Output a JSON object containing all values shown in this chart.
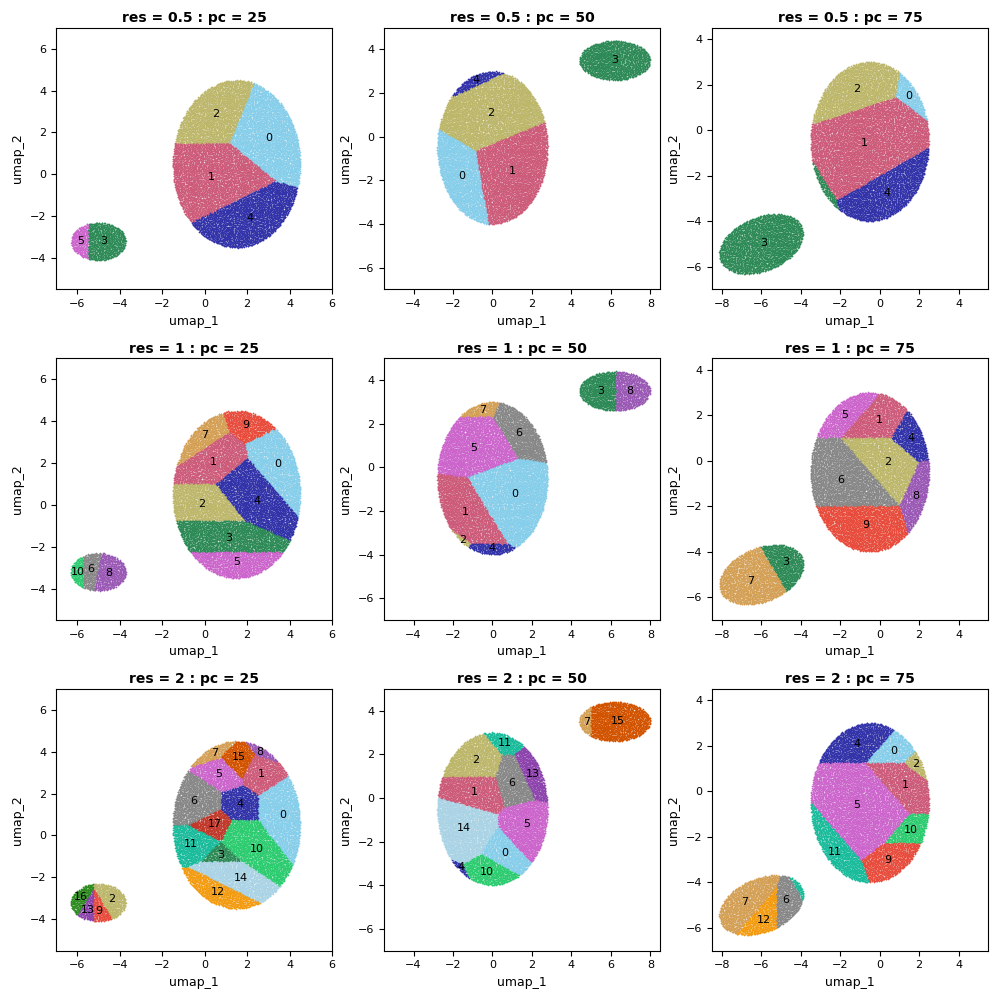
{
  "subplot_titles": [
    [
      "res = 0.5 : pc = 25",
      "res = 0.5 : pc = 50",
      "res = 0.5 : pc = 75"
    ],
    [
      "res = 1 : pc = 25",
      "res = 1 : pc = 50",
      "res = 1 : pc = 75"
    ],
    [
      "res = 2 : pc = 25",
      "res = 2 : pc = 50",
      "res = 2 : pc = 75"
    ]
  ],
  "xlabel": "umap_1",
  "ylabel": "umap_2",
  "axis_ranges": {
    "0_0": {
      "xlim": [
        -7,
        6
      ],
      "ylim": [
        -5.5,
        7
      ]
    },
    "0_1": {
      "xlim": [
        -5.5,
        8.5
      ],
      "ylim": [
        -7,
        5
      ]
    },
    "0_2": {
      "xlim": [
        -8.5,
        5.5
      ],
      "ylim": [
        -7,
        4.5
      ]
    },
    "1_0": {
      "xlim": [
        -7,
        6
      ],
      "ylim": [
        -5.5,
        7
      ]
    },
    "1_1": {
      "xlim": [
        -5.5,
        8.5
      ],
      "ylim": [
        -7,
        5
      ]
    },
    "1_2": {
      "xlim": [
        -8.5,
        5.5
      ],
      "ylim": [
        -7,
        4.5
      ]
    },
    "2_0": {
      "xlim": [
        -7,
        6
      ],
      "ylim": [
        -5.5,
        7
      ]
    },
    "2_1": {
      "xlim": [
        -5.5,
        8.5
      ],
      "ylim": [
        -7,
        5
      ]
    },
    "2_2": {
      "xlim": [
        -8.5,
        5.5
      ],
      "ylim": [
        -7,
        4.5
      ]
    }
  },
  "colors_18": [
    "#87CEEB",
    "#CD5C7A",
    "#BDB76B",
    "#2E8B57",
    "#3333AA",
    "#CC66CC",
    "#888888",
    "#D4A056",
    "#9B59B6",
    "#E74C3C",
    "#2ECC71",
    "#1ABC9C",
    "#F39C12",
    "#8E44AD",
    "#AAD4E5",
    "#D35400",
    "#2E8B20",
    "#C0392B"
  ]
}
